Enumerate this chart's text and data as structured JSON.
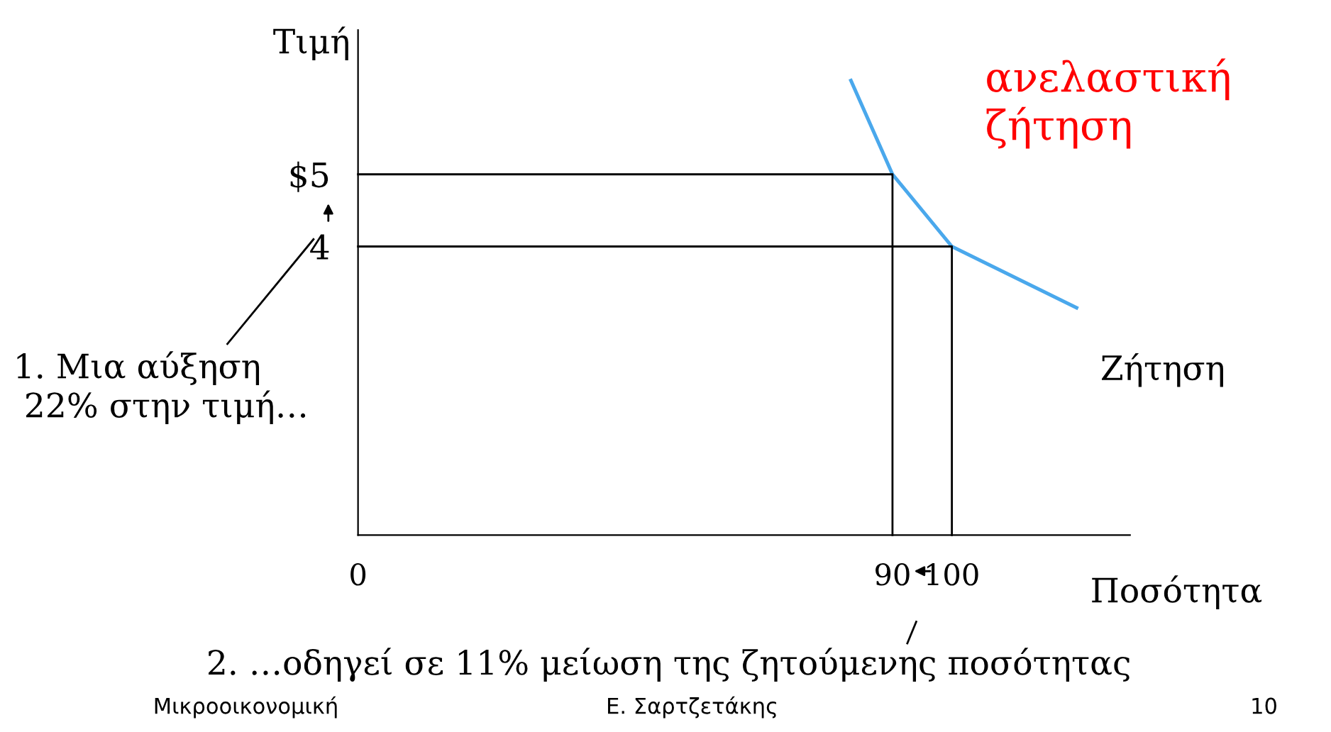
{
  "chart_data": {
    "type": "line",
    "xlabel": "Ποσότητα",
    "ylabel": "Τιμή",
    "xlim": [
      0,
      130
    ],
    "ylim": [
      0,
      7
    ],
    "xticks": [
      0,
      90,
      100
    ],
    "yticks": [
      4,
      {
        "value": 5,
        "label": "$5"
      }
    ],
    "grid": false,
    "legend": false,
    "marker": "none",
    "line_style": "solid",
    "series": [
      {
        "name": "Ζήτηση",
        "color": "#4aa8ec",
        "x": [
          83,
          90,
          100,
          121
        ],
        "values": [
          6.3,
          5,
          4,
          3.15
        ]
      },
      {
        "color": "#000000",
        "x": [
          0,
          90,
          90
        ],
        "values": [
          5,
          5,
          0
        ]
      },
      {
        "color": "#000000",
        "x": [
          0,
          100,
          100
        ],
        "values": [
          4,
          4,
          0
        ]
      }
    ],
    "annotations": [
      "ανελαστική\nζήτηση",
      "1. Μια αύξηση\n 22% στην τιμή…",
      "2. …οδηγεί σε 11% μείωση της ζητούμενης ποσότητας",
      "Μικροοικονομική",
      "Ε. Σαρτζετάκης",
      "10"
    ]
  }
}
